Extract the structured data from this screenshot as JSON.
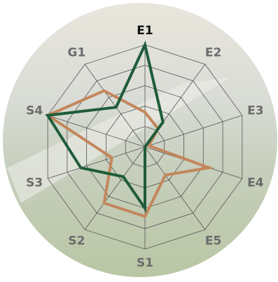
{
  "chart_data": {
    "type": "radar",
    "categories": [
      "E1",
      "E2",
      "E3",
      "E4",
      "E5",
      "S1",
      "S2",
      "S3",
      "S4",
      "G1"
    ],
    "series": [
      {
        "color": "#1f5c3a",
        "values": [
          5,
          1.5,
          0,
          0,
          0,
          3,
          1.8,
          3.3,
          5,
          2.4
        ]
      },
      {
        "color": "#c4865c",
        "values": [
          1.7,
          1.1,
          0.2,
          3.3,
          1.7,
          3.4,
          3.4,
          1.7,
          5,
          3.4
        ]
      }
    ],
    "rlim": [
      0,
      5
    ],
    "rticks": [
      1,
      2,
      3,
      4,
      5
    ],
    "grid": true
  }
}
